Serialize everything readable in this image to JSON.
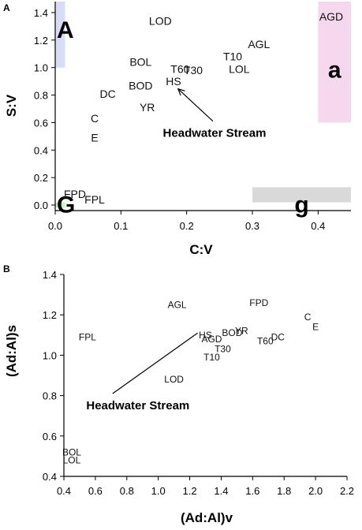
{
  "chart_data": [
    {
      "panel": "A",
      "type": "scatter",
      "xlabel": "C:V",
      "ylabel": "S:V",
      "xlim": [
        0.0,
        0.45
      ],
      "ylim": [
        -0.04,
        1.48
      ],
      "xticks": [
        "0.0",
        "0.1",
        "0.2",
        "0.3",
        "0.4"
      ],
      "yticks": [
        "0.0",
        "0.2",
        "0.4",
        "0.6",
        "0.8",
        "1.0",
        "1.2",
        "1.4"
      ],
      "grid": false,
      "points": [
        {
          "label": "LOD",
          "x": 0.16,
          "y": 1.34
        },
        {
          "label": "AGD",
          "x": 0.42,
          "y": 1.37
        },
        {
          "label": "AGL",
          "x": 0.31,
          "y": 1.17
        },
        {
          "label": "T10",
          "x": 0.27,
          "y": 1.08
        },
        {
          "label": "LOL",
          "x": 0.28,
          "y": 0.99
        },
        {
          "label": "BOL",
          "x": 0.13,
          "y": 1.04
        },
        {
          "label": "T60",
          "x": 0.19,
          "y": 0.99
        },
        {
          "label": "T30",
          "x": 0.21,
          "y": 0.98
        },
        {
          "label": "HS",
          "x": 0.18,
          "y": 0.9
        },
        {
          "label": "BOD",
          "x": 0.13,
          "y": 0.87
        },
        {
          "label": "DC",
          "x": 0.08,
          "y": 0.81
        },
        {
          "label": "YR",
          "x": 0.14,
          "y": 0.71
        },
        {
          "label": "C",
          "x": 0.06,
          "y": 0.63
        },
        {
          "label": "E",
          "x": 0.06,
          "y": 0.49
        },
        {
          "label": "FPD",
          "x": 0.03,
          "y": 0.08
        },
        {
          "label": "FPL",
          "x": 0.06,
          "y": 0.04
        }
      ],
      "regions": [
        {
          "letter": "A",
          "color": "#d8dcf6",
          "x": [
            0.0,
            0.015
          ],
          "y": [
            1.0,
            1.48
          ]
        },
        {
          "letter": "a",
          "color": "#f6d8ee",
          "x": [
            0.4,
            0.45
          ],
          "y": [
            0.6,
            1.48
          ]
        },
        {
          "letter": "G",
          "color": "#cfeccf",
          "x": [
            0.0,
            0.015
          ],
          "y": [
            -0.02,
            0.02
          ]
        },
        {
          "letter": "g",
          "color": "#d9d9d9",
          "x": [
            0.3,
            0.45
          ],
          "y": [
            0.02,
            0.13
          ]
        }
      ],
      "annotation": {
        "text": "Headwater Stream",
        "arrow_from": [
          0.24,
          0.61
        ],
        "arrow_to": [
          0.187,
          0.845
        ]
      }
    },
    {
      "panel": "B",
      "type": "scatter",
      "xlabel": "(Ad:Al)v",
      "ylabel": "(Ad:Al)s",
      "xlim": [
        0.4,
        2.2
      ],
      "ylim": [
        0.4,
        1.4
      ],
      "xticks": [
        "0.4",
        "0.6",
        "0.8",
        "1.0",
        "1.2",
        "1.4",
        "1.6",
        "1.8",
        "2.0",
        "2.2"
      ],
      "yticks": [
        "0.4",
        "0.6",
        "0.8",
        "1.0",
        "1.2",
        "1.4"
      ],
      "grid": false,
      "points": [
        {
          "label": "AGL",
          "x": 1.12,
          "y": 1.25
        },
        {
          "label": "FPD",
          "x": 1.64,
          "y": 1.26
        },
        {
          "label": "C",
          "x": 1.95,
          "y": 1.19
        },
        {
          "label": "E",
          "x": 2.0,
          "y": 1.14
        },
        {
          "label": "FPL",
          "x": 0.55,
          "y": 1.09
        },
        {
          "label": "HS",
          "x": 1.3,
          "y": 1.1
        },
        {
          "label": "BOD",
          "x": 1.47,
          "y": 1.11
        },
        {
          "label": "YR",
          "x": 1.53,
          "y": 1.12
        },
        {
          "label": "AGD",
          "x": 1.34,
          "y": 1.08
        },
        {
          "label": "DC",
          "x": 1.76,
          "y": 1.09
        },
        {
          "label": "T60",
          "x": 1.68,
          "y": 1.07
        },
        {
          "label": "T30",
          "x": 1.41,
          "y": 1.03
        },
        {
          "label": "T10",
          "x": 1.34,
          "y": 0.99
        },
        {
          "label": "LOD",
          "x": 1.1,
          "y": 0.88
        },
        {
          "label": "BOL",
          "x": 0.45,
          "y": 0.52
        },
        {
          "label": "LOL",
          "x": 0.45,
          "y": 0.48
        }
      ],
      "annotation": {
        "text": "Headwater Stream",
        "line_from": [
          0.71,
          0.81
        ],
        "line_to": [
          1.25,
          1.11
        ]
      }
    }
  ]
}
